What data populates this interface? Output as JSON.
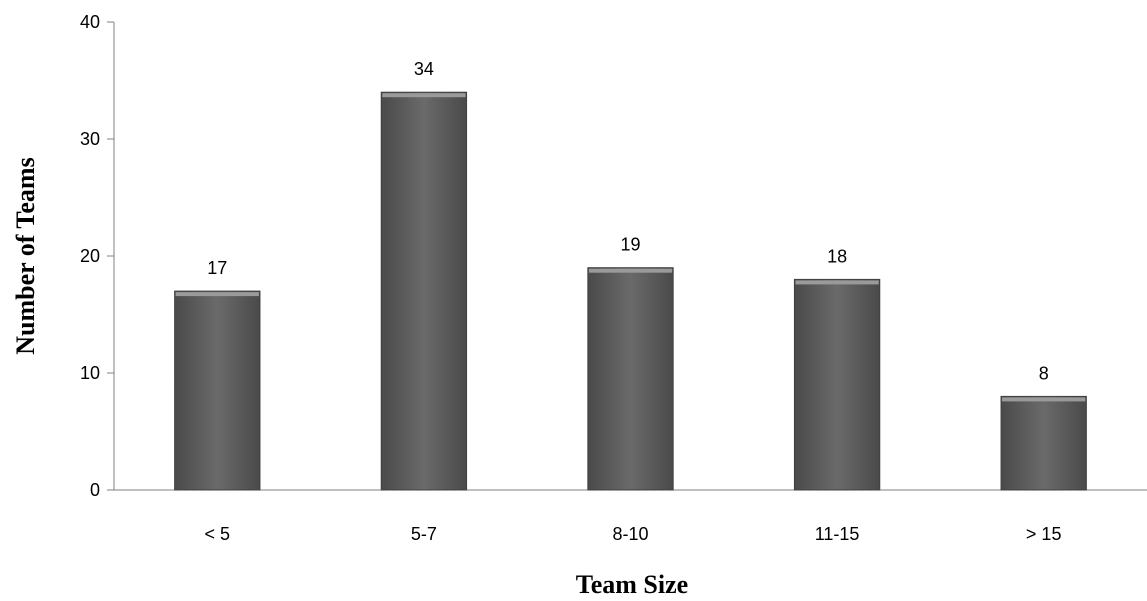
{
  "chart_data": {
    "type": "bar",
    "title": "",
    "xlabel": "Team Size",
    "ylabel": "Number of Teams",
    "categories": [
      "< 5",
      "5-7",
      "8-10",
      "11-15",
      "> 15"
    ],
    "values": [
      17,
      34,
      19,
      18,
      8
    ],
    "ylim": [
      0,
      40
    ],
    "yticks": [
      0,
      10,
      20,
      30,
      40
    ],
    "grid": false,
    "legend": "none",
    "data_labels": true,
    "bar_color": "#606060",
    "bar_edge_color": "#404040"
  }
}
